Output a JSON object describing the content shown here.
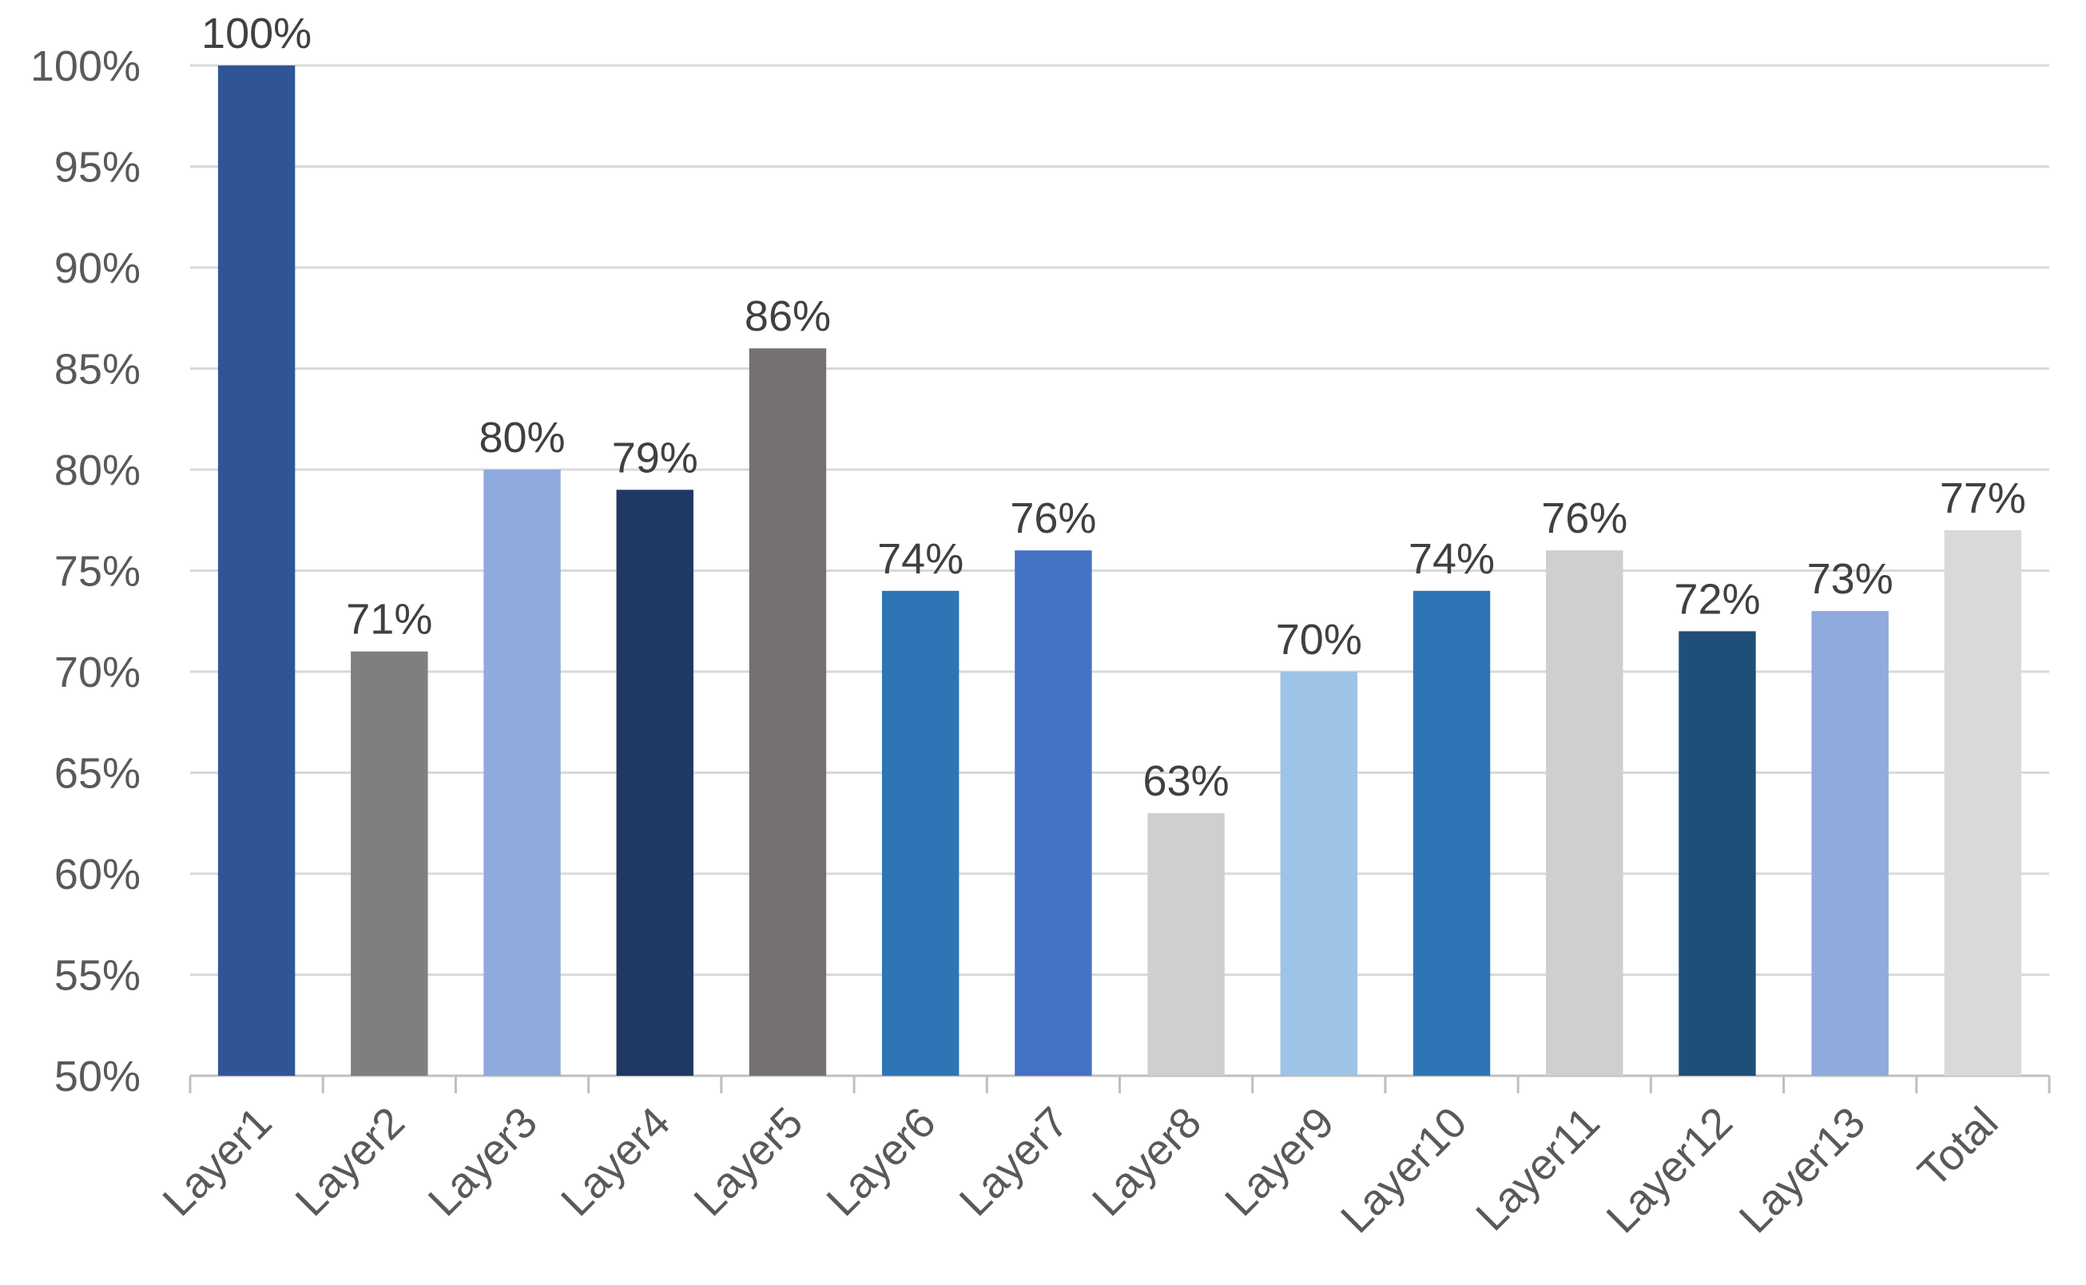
{
  "chart_data": {
    "type": "bar",
    "categories": [
      "Layer1",
      "Layer2",
      "Layer3",
      "Layer4",
      "Layer5",
      "Layer6",
      "Layer7",
      "Layer8",
      "Layer9",
      "Layer10",
      "Layer11",
      "Layer12",
      "Layer13",
      "Total"
    ],
    "values": [
      100,
      71,
      80,
      79,
      86,
      74,
      76,
      63,
      70,
      74,
      76,
      72,
      73,
      77
    ],
    "data_labels": [
      "100%",
      "71%",
      "80%",
      "79%",
      "86%",
      "74%",
      "76%",
      "63%",
      "70%",
      "74%",
      "76%",
      "72%",
      "73%",
      "77%"
    ],
    "bar_colors": [
      "#2F5597",
      "#7F7F7F",
      "#8FAADC",
      "#203864",
      "#767171",
      "#2E75B6",
      "#4472C4",
      "#D0CECE",
      "#9DC3E6",
      "#2E75B6",
      "#D0CECE",
      "#1F4E79",
      "#8FAADC",
      "#D9D9D9"
    ],
    "y_ticks": [
      50,
      55,
      60,
      65,
      70,
      75,
      80,
      85,
      90,
      95,
      100
    ],
    "y_tick_labels": [
      "50%",
      "55%",
      "60%",
      "65%",
      "70%",
      "75%",
      "80%",
      "85%",
      "90%",
      "95%",
      "100%"
    ],
    "ylim": [
      50,
      100
    ],
    "unit": "%",
    "grid": true,
    "legend": "none",
    "title": "",
    "xlabel": "",
    "ylabel": "",
    "colors": {
      "grid": "#D9D9D9",
      "axis": "#BFBFBF",
      "tick_text": "#595959",
      "label_text": "#404040"
    }
  }
}
